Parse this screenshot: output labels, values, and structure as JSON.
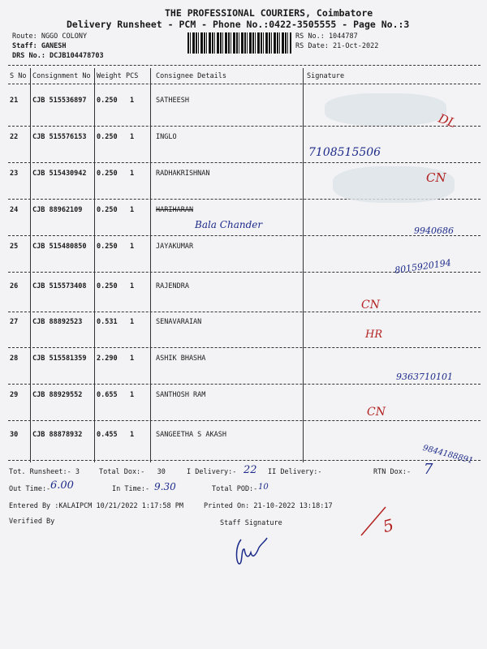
{
  "header": {
    "company": "THE PROFESSIONAL COURIERS, Coimbatore",
    "subtitle": "Delivery Runsheet - PCM - Phone No.:0422-3505555 - Page No.:3",
    "route": "Route: NGGO COLONY",
    "staff": "Staff: GANESH",
    "drs": "DRS No.: DCJB104478703",
    "rs_no": "RS No.: 1044787",
    "rs_date": "RS Date: 21-Oct-2022"
  },
  "table": {
    "columns": [
      "S No",
      "Consignment No",
      "Weight",
      "PCS",
      "Consignee Details",
      "Signature"
    ],
    "rows": [
      {
        "sno": "21",
        "cn": "CJB 515536897",
        "weight": "0.250",
        "pcs": "1",
        "name": "SATHEESH"
      },
      {
        "sno": "22",
        "cn": "CJB 515576153",
        "weight": "0.250",
        "pcs": "1",
        "name": "INGLO"
      },
      {
        "sno": "23",
        "cn": "CJB 515430942",
        "weight": "0.250",
        "pcs": "1",
        "name": "RADHAKRISHNAN"
      },
      {
        "sno": "24",
        "cn": "CJB 88962109",
        "weight": "0.250",
        "pcs": "1",
        "name": "HARIHARAN"
      },
      {
        "sno": "25",
        "cn": "CJB 515480850",
        "weight": "0.250",
        "pcs": "1",
        "name": "JAYAKUMAR"
      },
      {
        "sno": "26",
        "cn": "CJB 515573408",
        "weight": "0.250",
        "pcs": "1",
        "name": "RAJENDRA"
      },
      {
        "sno": "27",
        "cn": "CJB 88892523",
        "weight": "0.531",
        "pcs": "1",
        "name": "SENAVARAIAN"
      },
      {
        "sno": "28",
        "cn": "CJB 515581359",
        "weight": "2.290",
        "pcs": "1",
        "name": "ASHIK BHASHA"
      },
      {
        "sno": "29",
        "cn": "CJB 88929552",
        "weight": "0.655",
        "pcs": "1",
        "name": "SANTHOSH RAM"
      },
      {
        "sno": "30",
        "cn": "CJB 88878932",
        "weight": "0.455",
        "pcs": "1",
        "name": "SANGEETHA S AKASH"
      }
    ]
  },
  "handwriting": {
    "r21_mark": "DL",
    "r22_phone": "7108515506",
    "r23_mark": "CN",
    "r24_name": "Bala Chander",
    "r24_phone": "9940686",
    "r25_phone": "8015920194",
    "r26_mark": "CN",
    "r27_mark": "HR",
    "r28_phone": "9363710101",
    "r29_mark": "CN",
    "r30_phone": "9844188891",
    "i_delivery": "22",
    "rtn_dox": "7",
    "out_time": "6.00",
    "in_time": "9.30",
    "total_pod": "10",
    "corner_mark": "5"
  },
  "footer": {
    "tot_runsheet": "Tot. Runsheet:- 3",
    "total_dox": "Total Dox:-   30",
    "i_delivery": "I Delivery:-",
    "ii_delivery": "II Delivery:-",
    "rtn_dox": "RTN Dox:-",
    "out_time": "Out Time:-",
    "in_time": "In Time:-",
    "total_pod": "Total POD:-",
    "entered_by": "Entered By :KALAIPCM 10/21/2022 1:17:58 PM",
    "printed_on": "Printed On: 21-10-2022 13:18:17",
    "verified_by": "Verified By",
    "staff_signature": "Staff Signature"
  },
  "colors": {
    "ink_blue": "#1c2a8a",
    "ink_red": "#b32020",
    "paper": "#f3f3f5"
  }
}
